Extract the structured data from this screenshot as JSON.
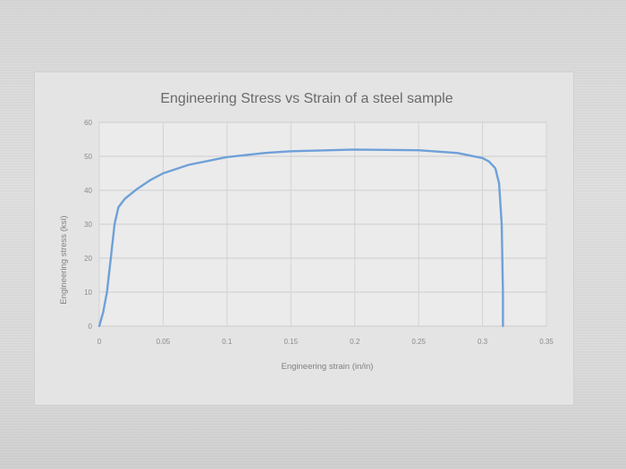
{
  "chart_data": {
    "type": "line",
    "title": "Engineering Stress vs Strain of a steel sample",
    "xlabel": "Engineering strain (in/in)",
    "ylabel": "Engineering stress (ksi)",
    "xlim": [
      0,
      0.35
    ],
    "ylim": [
      0,
      60
    ],
    "x_ticks": [
      0,
      0.05,
      0.1,
      0.15,
      0.2,
      0.25,
      0.3,
      0.35
    ],
    "x_tick_labels": [
      "0",
      "0.05",
      "0.1",
      "0.15",
      "0.2",
      "0.25",
      "0.3",
      "0.35"
    ],
    "y_ticks": [
      0,
      10,
      20,
      30,
      40,
      50,
      60
    ],
    "y_tick_labels": [
      "0",
      "10",
      "20",
      "30",
      "40",
      "50",
      "60"
    ],
    "grid": true,
    "legend": "none",
    "series": [
      {
        "color": "#6fa0d8",
        "x": [
          0,
          0.003,
          0.006,
          0.009,
          0.012,
          0.015,
          0.02,
          0.03,
          0.04,
          0.05,
          0.07,
          0.1,
          0.13,
          0.15,
          0.2,
          0.25,
          0.28,
          0.3,
          0.305,
          0.31,
          0.313,
          0.315,
          0.316,
          0.316
        ],
        "y": [
          0,
          4,
          10,
          20,
          30,
          35,
          37.5,
          40.5,
          43,
          45,
          47.5,
          49.8,
          51,
          51.5,
          52,
          51.8,
          51,
          49.5,
          48.5,
          46.5,
          42,
          30,
          10,
          0
        ]
      }
    ]
  }
}
